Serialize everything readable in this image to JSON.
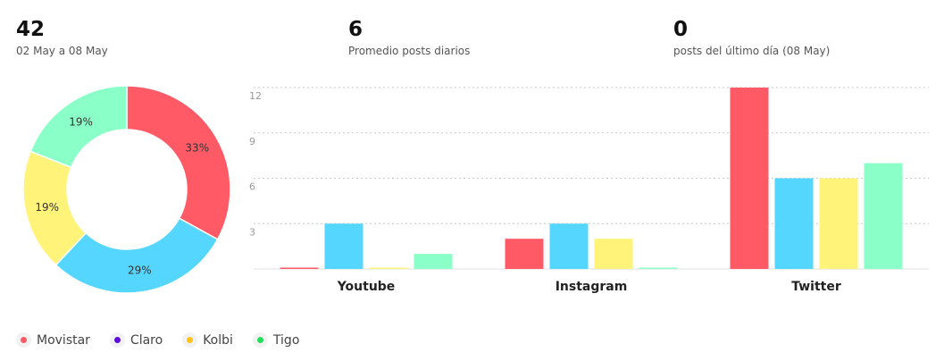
{
  "stats": [
    {
      "value": "42",
      "label": "02 May a 08 May"
    },
    {
      "value": "6",
      "label": "Promedio posts diarios"
    },
    {
      "value": "0",
      "label": "posts del último día (08 May)"
    }
  ],
  "colors": {
    "Movistar": "#ff5a66",
    "Claro": "#55d6ff",
    "Kolbi": "#fff37a",
    "Tigo": "#8affc8"
  },
  "legend": [
    {
      "name": "Movistar",
      "dot_color": "#ff5a66"
    },
    {
      "name": "Claro",
      "dot_color": "#5b0fd9"
    },
    {
      "name": "Kolbi",
      "dot_color": "#ffc21a"
    },
    {
      "name": "Tigo",
      "dot_color": "#22e05a"
    }
  ],
  "chart_data": [
    {
      "type": "pie",
      "donut": true,
      "labels": [
        "Movistar",
        "Claro",
        "Kolbi",
        "Tigo"
      ],
      "values": [
        33,
        29,
        19,
        19
      ],
      "value_labels": [
        "33%",
        "29%",
        "19%",
        "19%"
      ]
    },
    {
      "type": "bar",
      "categories": [
        "Youtube",
        "Instagram",
        "Twitter"
      ],
      "series": [
        {
          "name": "Movistar",
          "values": [
            0,
            2,
            12
          ]
        },
        {
          "name": "Claro",
          "values": [
            3,
            3,
            6
          ]
        },
        {
          "name": "Kolbi",
          "values": [
            0,
            2,
            6
          ]
        },
        {
          "name": "Tigo",
          "values": [
            1,
            0,
            7
          ]
        }
      ],
      "yticks": [
        "3",
        "6",
        "9",
        "12"
      ],
      "ylim": [
        0,
        12
      ],
      "grid": true
    }
  ]
}
